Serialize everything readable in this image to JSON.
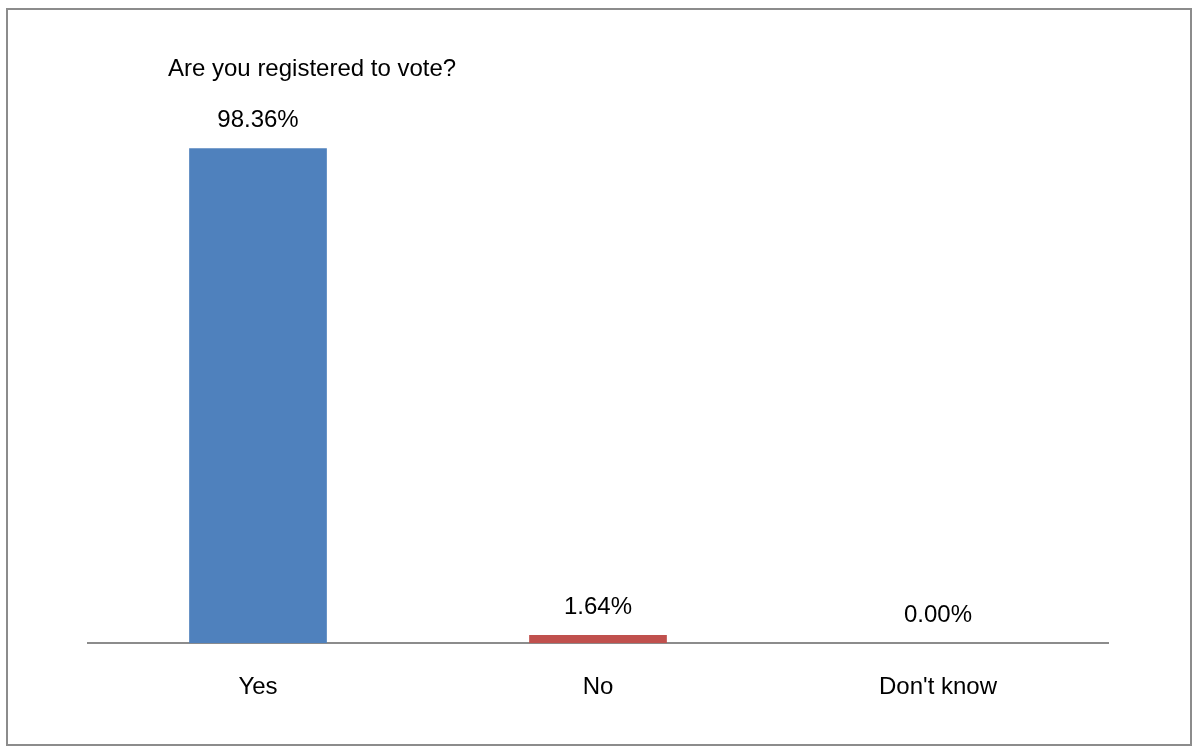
{
  "chart_data": {
    "type": "bar",
    "title": "Are you registered to vote?",
    "categories": [
      "Yes",
      "No",
      "Don't know"
    ],
    "values": [
      98.36,
      1.64,
      0.0
    ],
    "colors": [
      "#4f81bd",
      "#c0504d",
      "#9bbb59"
    ],
    "value_labels": [
      "98.36%",
      "1.64%",
      "0.00%"
    ],
    "grid": false,
    "legend": false
  }
}
